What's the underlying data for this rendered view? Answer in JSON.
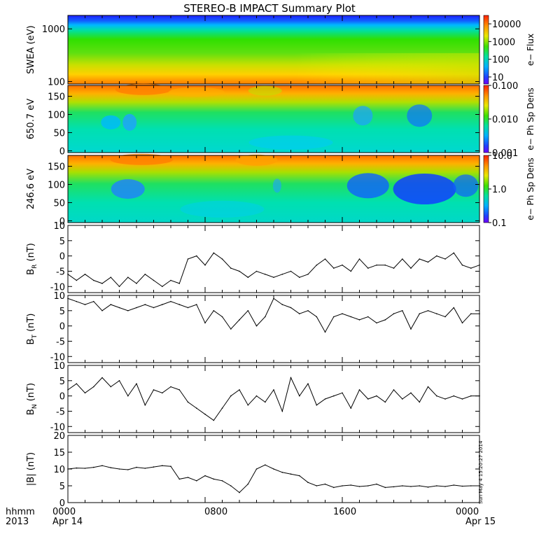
{
  "title": "STEREO-B IMPACT Summary Plot",
  "stamp": "Sun May  4 15:20:27 2014",
  "x_axis": {
    "row1_label": "hhmm",
    "row2_label": "2013",
    "ticks": [
      "0000",
      "0800",
      "1600",
      "0000"
    ],
    "dates": [
      "Apr 14",
      "Apr 15"
    ],
    "range_hours": [
      0,
      24
    ]
  },
  "chart_data": [
    {
      "type": "heatmap",
      "ylabel": "SWEA (eV)",
      "log_y": true,
      "yticks": [
        "1000",
        "100"
      ],
      "ylim": [
        90,
        1800
      ],
      "colorbar": {
        "label": "e− Flux",
        "ticks": [
          "10000",
          "1000",
          "100",
          "10"
        ],
        "range": [
          4,
          30000
        ],
        "log": true
      }
    },
    {
      "type": "heatmap",
      "ylabel": "650.7 eV",
      "yticks": [
        "150",
        "100",
        "50",
        "0"
      ],
      "ylim": [
        -5,
        180
      ],
      "colorbar": {
        "label": "e− Ph Sp Dens",
        "ticks": [
          "0.100",
          "0.010",
          "0.001"
        ],
        "range": [
          0.001,
          0.1
        ],
        "log": true
      }
    },
    {
      "type": "heatmap",
      "ylabel": "246.6 eV",
      "yticks": [
        "150",
        "100",
        "50",
        "0"
      ],
      "ylim": [
        -5,
        180
      ],
      "colorbar": {
        "label": "e− Ph Sp Dens",
        "ticks": [
          "10.0",
          "1.0",
          "0.1"
        ],
        "range": [
          0.1,
          10
        ],
        "log": true
      }
    },
    {
      "type": "line",
      "ylabel_main": "B",
      "ylabel_sub": "R",
      "ylabel_unit": "(nT)",
      "ylim": [
        -12,
        10
      ],
      "yticks": [
        "10",
        "5",
        "0",
        "-5",
        "-10"
      ],
      "x": [
        0,
        0.5,
        1,
        1.5,
        2,
        2.5,
        3,
        3.5,
        4,
        4.5,
        5,
        5.5,
        6,
        6.5,
        7,
        7.5,
        8,
        8.5,
        9,
        9.5,
        10,
        10.5,
        11,
        11.5,
        12,
        12.5,
        13,
        13.5,
        14,
        14.5,
        15,
        15.5,
        16,
        16.5,
        17,
        17.5,
        18,
        18.5,
        19,
        19.5,
        20,
        20.5,
        21,
        21.5,
        22,
        22.5,
        23,
        23.5,
        24
      ],
      "y": [
        -6,
        -8,
        -6,
        -8,
        -9,
        -7,
        -10,
        -7,
        -9,
        -6,
        -8,
        -10,
        -8,
        -9,
        -1,
        0,
        -3,
        1,
        -1,
        -4,
        -5,
        -7,
        -5,
        -6,
        -7,
        -6,
        -5,
        -7,
        -6,
        -3,
        -1,
        -4,
        -3,
        -5,
        -1,
        -4,
        -3,
        -3,
        -4,
        -1,
        -4,
        -1,
        -2,
        0,
        -1,
        1,
        -3,
        -4,
        -3
      ]
    },
    {
      "type": "line",
      "ylabel_main": "B",
      "ylabel_sub": "T",
      "ylabel_unit": "(nT)",
      "ylim": [
        -12,
        10
      ],
      "yticks": [
        "10",
        "5",
        "0",
        "-5",
        "-10"
      ],
      "x": [
        0,
        0.5,
        1,
        1.5,
        2,
        2.5,
        3,
        3.5,
        4,
        4.5,
        5,
        5.5,
        6,
        6.5,
        7,
        7.5,
        8,
        8.5,
        9,
        9.5,
        10,
        10.5,
        11,
        11.5,
        12,
        12.5,
        13,
        13.5,
        14,
        14.5,
        15,
        15.5,
        16,
        16.5,
        17,
        17.5,
        18,
        18.5,
        19,
        19.5,
        20,
        20.5,
        21,
        21.5,
        22,
        22.5,
        23,
        23.5,
        24
      ],
      "y": [
        9,
        8,
        7,
        8,
        5,
        7,
        6,
        5,
        6,
        7,
        6,
        7,
        8,
        7,
        6,
        7,
        1,
        5,
        3,
        -1,
        2,
        5,
        0,
        3,
        9,
        7,
        6,
        4,
        5,
        3,
        -2,
        3,
        4,
        3,
        2,
        3,
        1,
        2,
        4,
        5,
        -1,
        4,
        5,
        4,
        3,
        6,
        1,
        4,
        4
      ]
    },
    {
      "type": "line",
      "ylabel_main": "B",
      "ylabel_sub": "N",
      "ylabel_unit": "(nT)",
      "ylim": [
        -12,
        10
      ],
      "yticks": [
        "10",
        "5",
        "0",
        "-5",
        "-10"
      ],
      "x": [
        0,
        0.5,
        1,
        1.5,
        2,
        2.5,
        3,
        3.5,
        4,
        4.5,
        5,
        5.5,
        6,
        6.5,
        7,
        7.5,
        8,
        8.5,
        9,
        9.5,
        10,
        10.5,
        11,
        11.5,
        12,
        12.5,
        13,
        13.5,
        14,
        14.5,
        15,
        15.5,
        16,
        16.5,
        17,
        17.5,
        18,
        18.5,
        19,
        19.5,
        20,
        20.5,
        21,
        21.5,
        22,
        22.5,
        23,
        23.5,
        24
      ],
      "y": [
        2,
        4,
        1,
        3,
        6,
        3,
        5,
        0,
        4,
        -3,
        2,
        1,
        3,
        2,
        -2,
        -4,
        -6,
        -8,
        -4,
        0,
        2,
        -3,
        0,
        -2,
        2,
        -5,
        6,
        0,
        4,
        -3,
        -1,
        0,
        1,
        -4,
        2,
        -1,
        0,
        -2,
        2,
        -1,
        1,
        -2,
        3,
        0,
        -1,
        0,
        -1,
        0,
        0
      ]
    },
    {
      "type": "line",
      "ylabel_main": "|B|",
      "ylabel_sub": "",
      "ylabel_unit": "(nT)",
      "ylim": [
        0,
        20
      ],
      "yticks": [
        "20",
        "15",
        "10",
        "5",
        "0"
      ],
      "x": [
        0,
        0.5,
        1,
        1.5,
        2,
        2.5,
        3,
        3.5,
        4,
        4.5,
        5,
        5.5,
        6,
        6.5,
        7,
        7.5,
        8,
        8.5,
        9,
        9.5,
        10,
        10.5,
        11,
        11.5,
        12,
        12.5,
        13,
        13.5,
        14,
        14.5,
        15,
        15.5,
        16,
        16.5,
        17,
        17.5,
        18,
        18.5,
        19,
        19.5,
        20,
        20.5,
        21,
        21.5,
        22,
        22.5,
        23,
        23.5,
        24
      ],
      "y": [
        10,
        10.3,
        10.2,
        10.5,
        11,
        10.4,
        10,
        9.8,
        10.5,
        10.2,
        10.6,
        11,
        10.8,
        7,
        7.5,
        6.5,
        8,
        7,
        6.5,
        5,
        3,
        5.5,
        10,
        11.2,
        10,
        9,
        8.5,
        8,
        6,
        5,
        5.5,
        4.5,
        5,
        5.2,
        4.8,
        5,
        5.5,
        4.5,
        4.7,
        5,
        4.8,
        5,
        4.6,
        5,
        4.8,
        5.2,
        4.9,
        5,
        5
      ]
    }
  ]
}
